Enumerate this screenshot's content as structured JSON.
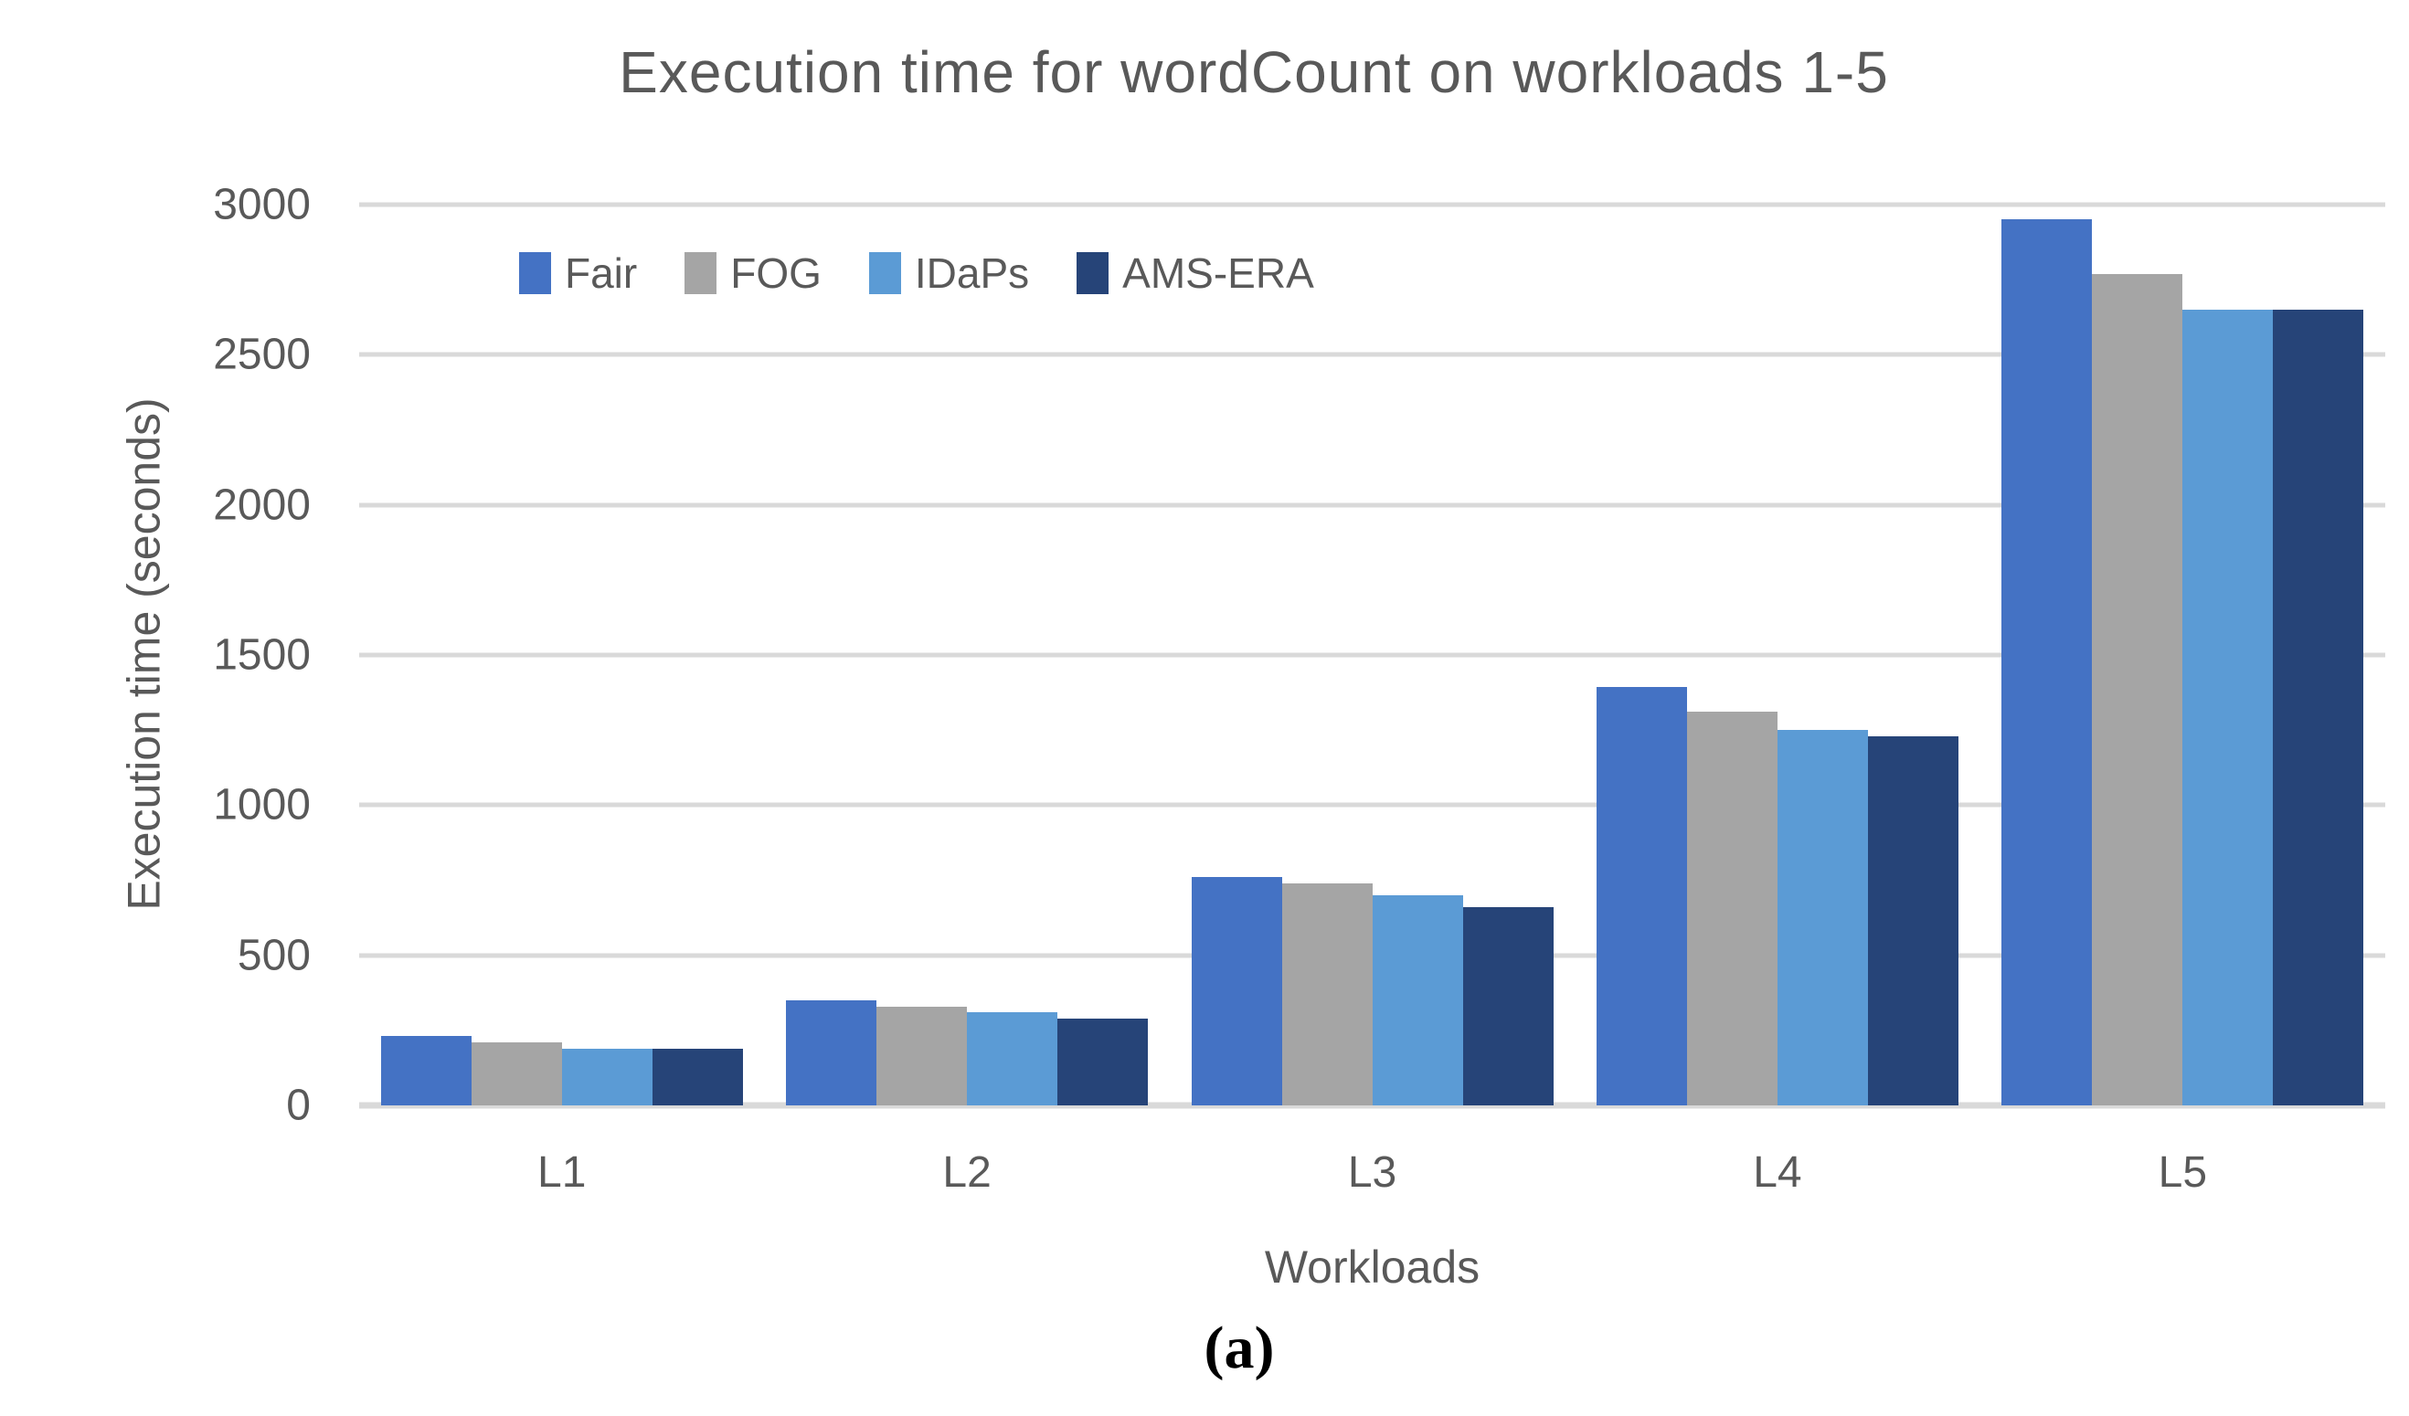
{
  "caption": "(a)",
  "colors": {
    "text": "#595959",
    "gridline": "#D9D9D9",
    "background": "#FFFFFF",
    "caption_text": "#000000"
  },
  "chart_data": {
    "type": "bar",
    "title": "Execution time for wordCount on workloads 1-5",
    "xlabel": "Workloads",
    "ylabel": "Execution time (seconds)",
    "categories": [
      "L1",
      "L2",
      "L3",
      "L4",
      "L5"
    ],
    "series": [
      {
        "name": "Fair",
        "color": "#4472C4",
        "values": [
          230,
          350,
          760,
          1395,
          2950
        ]
      },
      {
        "name": "FOG",
        "color": "#A5A5A5",
        "values": [
          210,
          330,
          740,
          1310,
          2770
        ]
      },
      {
        "name": "IDaPs",
        "color": "#5B9BD5",
        "values": [
          190,
          310,
          700,
          1250,
          2650
        ]
      },
      {
        "name": "AMS-ERA",
        "color": "#264478",
        "values": [
          190,
          290,
          660,
          1230,
          2650
        ]
      }
    ],
    "ylim": [
      0,
      3000
    ],
    "yticks": [
      0,
      500,
      1000,
      1500,
      2000,
      2500,
      3000
    ],
    "grid": true,
    "legend_position": "top-left-inside"
  }
}
